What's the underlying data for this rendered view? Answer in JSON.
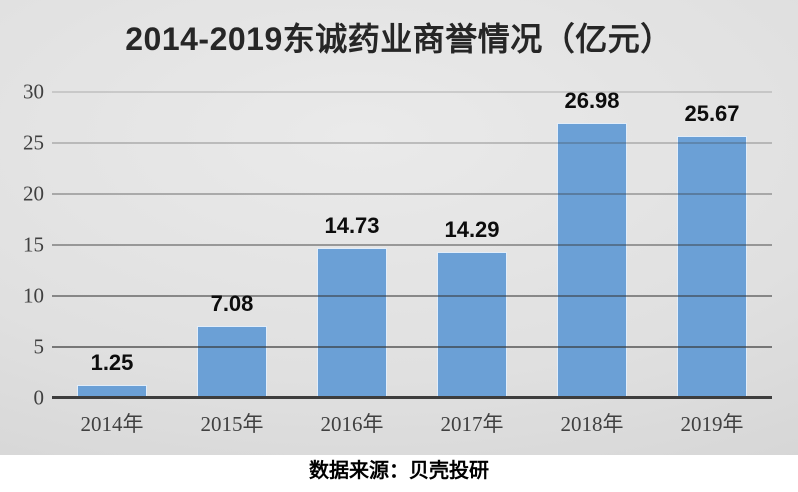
{
  "title": "2014-2019东诚药业商誉情况（亿元）",
  "source_note": "数据来源：贝壳投研",
  "chart_data": {
    "type": "bar",
    "title": "2014-2019东诚药业商誉情况（亿元）",
    "categories": [
      "2014年",
      "2015年",
      "2016年",
      "2017年",
      "2018年",
      "2019年"
    ],
    "values": [
      1.25,
      7.08,
      14.73,
      14.29,
      26.98,
      25.67
    ],
    "data_labels": [
      "1.25",
      "7.08",
      "14.73",
      "14.29",
      "26.98",
      "25.67"
    ],
    "unit": "亿元",
    "xlabel": "",
    "ylabel": "",
    "ylim": [
      0,
      30
    ],
    "yticks": [
      0,
      5,
      10,
      15,
      20,
      25,
      30
    ],
    "grid": true,
    "legend_position": "none",
    "colors": {
      "bar_fill": "#6BA0D6",
      "bar_border": "#E2EDF9",
      "axis_line": "#3D3D3D",
      "tick_label": "#404040",
      "data_label": "#0D0D0D",
      "title_text": "#262626",
      "background_top": "#EAEAEA",
      "background_bottom": "#CBCBCB"
    },
    "source_note": "数据来源：贝壳投研"
  }
}
